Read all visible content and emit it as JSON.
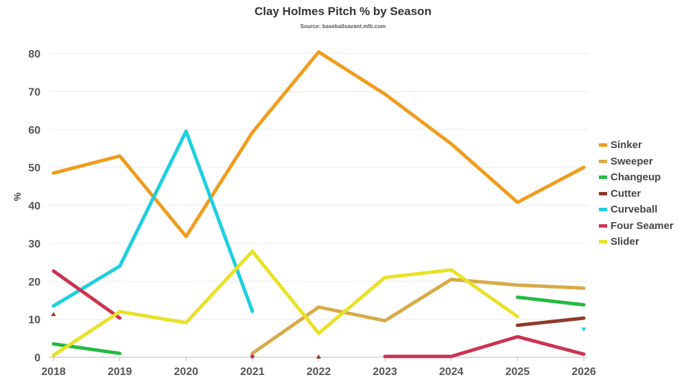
{
  "chart_data": {
    "type": "line",
    "title": "Clay Holmes Pitch % by Season",
    "subtitle": "Source: baseballsavant.mlb.com",
    "xlabel": "",
    "ylabel": "%",
    "x": [
      2018,
      2019,
      2020,
      2021,
      2022,
      2023,
      2024,
      2025,
      2026
    ],
    "xticks": [
      "2018",
      "2019",
      "2020",
      "2021",
      "2022",
      "2023",
      "2024",
      "2025",
      "2026"
    ],
    "yticks": [
      "0",
      "10",
      "20",
      "30",
      "40",
      "50",
      "60",
      "70",
      "80"
    ],
    "ylim": [
      0,
      80
    ],
    "grid": true,
    "legend_position": "right",
    "series": [
      {
        "name": "Sinker",
        "color": "#f09c1c",
        "values": [
          48.5,
          53.0,
          31.8,
          59.2,
          80.4,
          69.3,
          56.2,
          40.8,
          50.0
        ]
      },
      {
        "name": "Sweeper",
        "color": "#d8aa47",
        "values": [
          null,
          null,
          null,
          1.0,
          13.2,
          9.6,
          20.5,
          19.0,
          18.2
        ]
      },
      {
        "name": "Changeup",
        "color": "#23bb42",
        "values": [
          3.5,
          1.0,
          null,
          null,
          null,
          null,
          null,
          15.8,
          13.8
        ]
      },
      {
        "name": "Cutter",
        "color": "#8e3a2a",
        "values": [
          11.2,
          null,
          null,
          null,
          0.0,
          null,
          null,
          8.4,
          10.3
        ]
      },
      {
        "name": "Curveball",
        "color": "#1ccfe0",
        "values": [
          13.5,
          24.0,
          59.5,
          12.1,
          null,
          null,
          null,
          null,
          7.3
        ]
      },
      {
        "name": "Four Seamer",
        "color": "#cc3351",
        "values": [
          22.7,
          10.3,
          null,
          0.2,
          null,
          0.2,
          0.2,
          5.4,
          0.8
        ]
      },
      {
        "name": "Slider",
        "color": "#e9e125",
        "values": [
          0.5,
          12.0,
          9.1,
          27.9,
          6.3,
          21.0,
          23.0,
          10.7,
          null
        ]
      }
    ]
  }
}
